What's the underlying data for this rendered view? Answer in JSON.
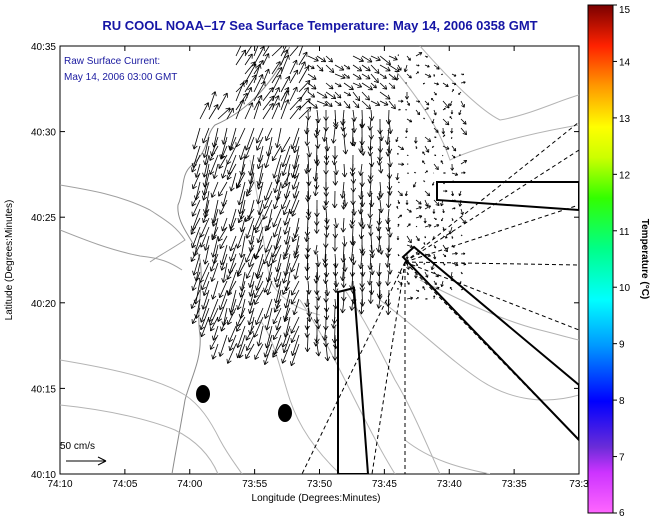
{
  "title": "RU COOL  NOAA–17  Sea Surface Temperature:  May 14, 2006 0358 GMT",
  "annotation": {
    "line1": "Raw Surface Current:",
    "line2": "May 14, 2006 03:00 GMT"
  },
  "scale_label": "50 cm/s",
  "axes": {
    "xlabel": "Longitude (Degrees:Minutes)",
    "ylabel": "Latitude (Degrees:Minutes)",
    "xticks": [
      "74:10",
      "74:05",
      "74:00",
      "73:55",
      "73:50",
      "73:45",
      "73:40",
      "73:35",
      "73:3"
    ],
    "yticks": [
      "40:35",
      "40:30",
      "40:25",
      "40:20",
      "40:15",
      "40:10"
    ]
  },
  "colorbar": {
    "label": "Temperature (°C)",
    "ticks": [
      "15",
      "14",
      "13",
      "12",
      "11",
      "10",
      "9",
      "8",
      "7",
      "6"
    ]
  }
}
